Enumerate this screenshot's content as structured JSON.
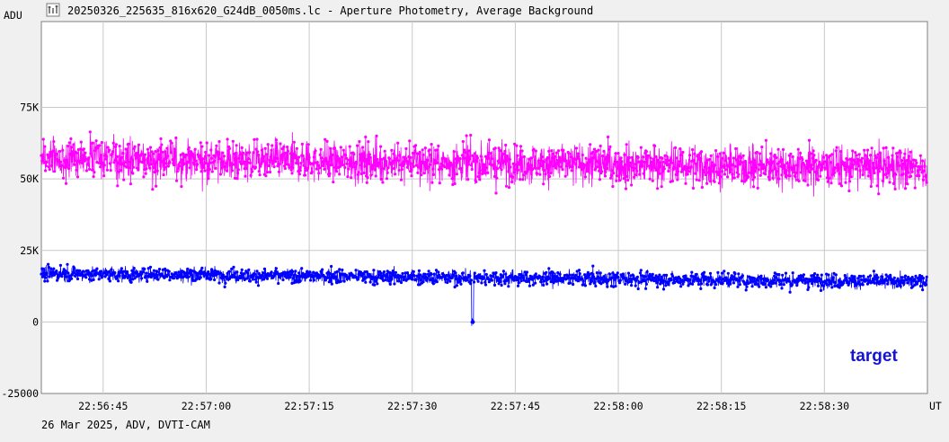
{
  "window": {
    "title": "20250326_225635_816x620_G24dB_0050ms.lc - Aperture Photometry, Average Background",
    "icon": "lightcurve-chart-icon"
  },
  "footer": {
    "info": "26 Mar 2025, ADV, DVTI-CAM"
  },
  "chart_data": {
    "type": "scatter",
    "title": "",
    "ylabel": "ADU",
    "xlabel": "UT",
    "ylim": [
      -25000,
      105000
    ],
    "y_ticks": [
      75000,
      50000,
      25000,
      0,
      -25000
    ],
    "y_tick_labels": [
      "75K",
      "50K",
      "25K",
      "0",
      "-25000"
    ],
    "xlim_seconds_after_22_56_36": [
      0,
      129
    ],
    "x_tick_labels": [
      "22:56:45",
      "22:57:00",
      "22:57:15",
      "22:57:30",
      "22:57:45",
      "22:58:00",
      "22:58:15",
      "22:58:30"
    ],
    "x_tick_seconds": [
      9,
      24,
      39,
      54,
      69,
      84,
      99,
      114
    ],
    "grid": true,
    "series": [
      {
        "name": "",
        "color": "#ff00ff",
        "approx_samples": 2580,
        "base_start": 57000,
        "base_end": 54000,
        "noise_sigma": 6000,
        "max": 78000,
        "min": 39000
      },
      {
        "name": "target",
        "color": "#0000ff",
        "approx_samples": 2580,
        "base_start": 17000,
        "base_end": 14000,
        "noise_sigma": 2200,
        "max": 25000,
        "dip_time_seconds": 62.8,
        "dip_min": -1500
      }
    ],
    "legend": {
      "text": "target",
      "placement": "bottom-right",
      "color": "#1515d0"
    },
    "colors": {
      "background": "#ffffff",
      "grid": "#c8c8c8",
      "axis": "#808080"
    }
  }
}
